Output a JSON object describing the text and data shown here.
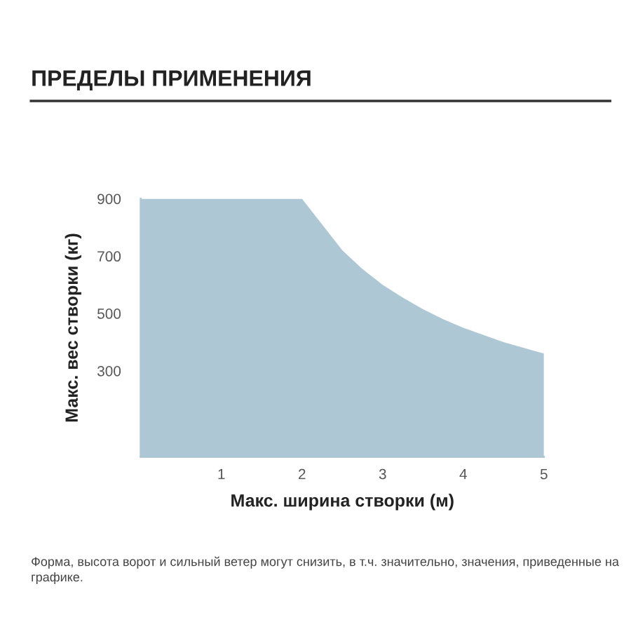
{
  "chart_data": {
    "type": "area",
    "title": "ПРЕДЕЛЫ ПРИМЕНЕНИЯ",
    "xlabel": "Макс. ширина створки (м)",
    "ylabel": "Макс. вес створки (кг)",
    "annotations": [
      "Форма, высота ворот и сильный ветер могут снизить, в т.ч. значительно, значения, приведенные на графике."
    ],
    "x": [
      0,
      2,
      2.25,
      2.5,
      2.75,
      3,
      3.25,
      3.5,
      3.75,
      4,
      4.5,
      5
    ],
    "values": [
      900,
      900,
      810,
      720,
      655,
      600,
      555,
      515,
      480,
      450,
      400,
      360
    ],
    "color": "#adc7d4",
    "xlim": [
      0,
      5
    ],
    "xticks": [
      1,
      2,
      3,
      4,
      5
    ],
    "ylim": [
      0,
      900
    ],
    "yticks": [
      300,
      500,
      700,
      900
    ]
  }
}
